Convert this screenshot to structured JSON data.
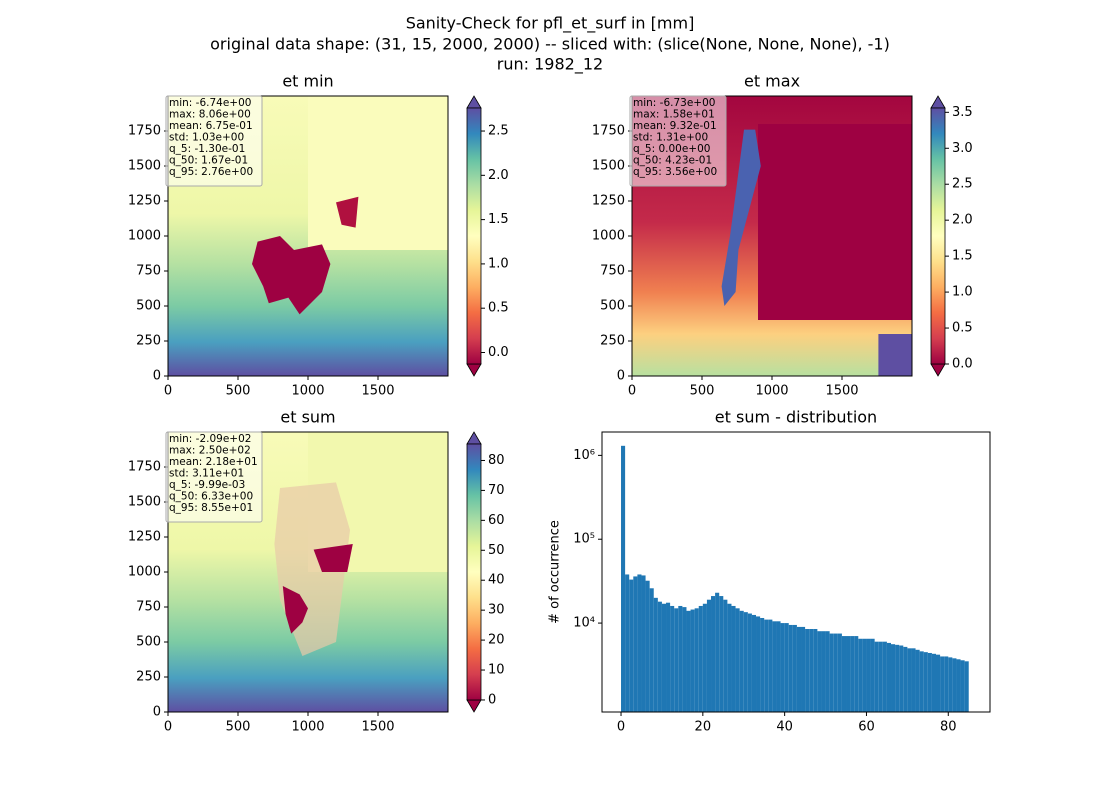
{
  "title": [
    "Sanity-Check for pfl_et_surf in [mm]",
    "original data shape: (31, 15, 2000, 2000) -- sliced with: (slice(None, None, None), -1)",
    "run: 1982_12"
  ],
  "chart_data": [
    {
      "type": "heatmap",
      "title": "et min",
      "xlim": [
        0,
        2000
      ],
      "ylim": [
        0,
        2000
      ],
      "xticks": [
        0,
        500,
        1000,
        1500
      ],
      "yticks": [
        0,
        250,
        500,
        750,
        1000,
        1250,
        1500,
        1750
      ],
      "stats": [
        "min: -6.74e+00",
        "max: 8.06e+00",
        "mean: 6.75e-01",
        "std: 1.03e+00",
        "q_5: -1.30e-01",
        "q_50: 1.67e-01",
        "q_95: 2.76e+00"
      ],
      "colorbar": {
        "lim": [
          -0.13,
          2.76
        ],
        "ticks": [
          {
            "value": 0,
            "label": "0.0"
          },
          {
            "value": 0.5,
            "label": "0.5"
          },
          {
            "value": 1,
            "label": "1.0"
          },
          {
            "value": 1.5,
            "label": "1.5"
          },
          {
            "value": 2,
            "label": "2.0"
          },
          {
            "value": 2.5,
            "label": "2.5"
          }
        ]
      }
    },
    {
      "type": "heatmap",
      "title": "et max",
      "xlim": [
        0,
        2000
      ],
      "ylim": [
        0,
        2000
      ],
      "xticks": [
        0,
        500,
        1000,
        1500
      ],
      "yticks": [
        0,
        250,
        500,
        750,
        1000,
        1250,
        1500,
        1750
      ],
      "stats": [
        "min: -6.73e+00",
        "max: 1.58e+01",
        "mean: 9.32e-01",
        "std: 1.31e+00",
        "q_5: 0.00e+00",
        "q_50: 4.23e-01",
        "q_95: 3.56e+00"
      ],
      "colorbar": {
        "lim": [
          0,
          3.56
        ],
        "ticks": [
          {
            "value": 0,
            "label": "0.0"
          },
          {
            "value": 0.5,
            "label": "0.5"
          },
          {
            "value": 1,
            "label": "1.0"
          },
          {
            "value": 1.5,
            "label": "1.5"
          },
          {
            "value": 2,
            "label": "2.0"
          },
          {
            "value": 2.5,
            "label": "2.5"
          },
          {
            "value": 3,
            "label": "3.0"
          },
          {
            "value": 3.5,
            "label": "3.5"
          }
        ]
      }
    },
    {
      "type": "heatmap",
      "title": "et sum",
      "xlim": [
        0,
        2000
      ],
      "ylim": [
        0,
        2000
      ],
      "xticks": [
        0,
        500,
        1000,
        1500
      ],
      "yticks": [
        0,
        250,
        500,
        750,
        1000,
        1250,
        1500,
        1750
      ],
      "stats": [
        "min: -2.09e+02",
        "max: 2.50e+02",
        "mean: 2.18e+01",
        "std: 3.11e+01",
        "q_5: -9.99e-03",
        "q_50: 6.33e+00",
        "q_95: 8.55e+01"
      ],
      "colorbar": {
        "lim": [
          -0.00999,
          85.5
        ],
        "ticks": [
          0,
          10,
          20,
          30,
          40,
          50,
          60,
          70,
          80
        ]
      }
    },
    {
      "type": "histogram",
      "title": "et sum - distribution",
      "ylabel": "# of occurrence",
      "color": "#1f77b4",
      "log": true,
      "xlim": [
        -4.65,
        90.2
      ],
      "xticks": [
        0,
        20,
        40,
        60,
        80
      ],
      "ylim": [
        870,
        1900000
      ],
      "yticks": [
        {
          "value": 10000,
          "label": "10⁴"
        },
        {
          "value": 100000,
          "label": "10⁵"
        },
        {
          "value": 1000000,
          "label": "10⁶"
        }
      ],
      "bins": [
        0,
        1,
        2,
        3,
        4,
        5,
        6,
        7,
        8,
        9,
        10,
        11,
        12,
        13,
        14,
        15,
        16,
        17,
        18,
        19,
        20,
        21,
        22,
        23,
        24,
        25,
        26,
        27,
        28,
        29,
        30,
        31,
        32,
        33,
        34,
        35,
        36,
        37,
        38,
        39,
        40,
        41,
        42,
        43,
        44,
        45,
        46,
        47,
        48,
        49,
        50,
        51,
        52,
        53,
        54,
        55,
        56,
        57,
        58,
        59,
        60,
        61,
        62,
        63,
        64,
        65,
        66,
        67,
        68,
        69,
        70,
        71,
        72,
        73,
        74,
        75,
        76,
        77,
        78,
        79,
        80,
        81,
        82,
        83,
        84,
        85
      ],
      "values": [
        1300000,
        38000,
        33000,
        36000,
        38000,
        37000,
        32000,
        26000,
        20000,
        18000,
        17000,
        17500,
        16000,
        15000,
        16000,
        15500,
        14000,
        14500,
        15000,
        16000,
        17000,
        19000,
        21000,
        23000,
        21000,
        19000,
        17000,
        16000,
        15000,
        14000,
        13500,
        13000,
        12500,
        12000,
        11500,
        11000,
        11000,
        10500,
        10500,
        10000,
        10000,
        9500,
        9500,
        9000,
        9000,
        8500,
        8500,
        8500,
        8000,
        8000,
        8000,
        7500,
        7500,
        7500,
        7000,
        7000,
        7000,
        7000,
        6500,
        6500,
        6500,
        6500,
        6000,
        6000,
        6000,
        5800,
        5600,
        5500,
        5400,
        5200,
        5000,
        5000,
        4800,
        4600,
        4500,
        4400,
        4300,
        4200,
        4000,
        4000,
        3900,
        3800,
        3700,
        3600,
        3500
      ]
    }
  ]
}
